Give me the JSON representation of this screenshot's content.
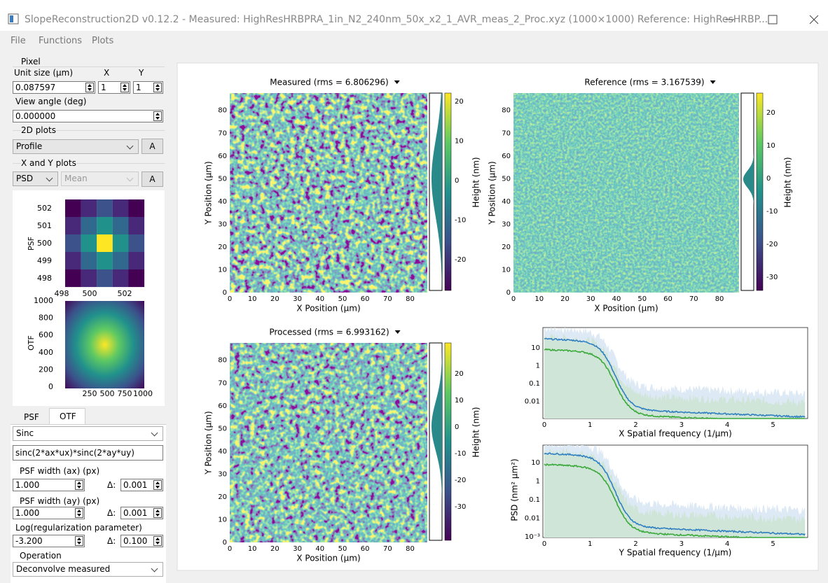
{
  "window": {
    "title": "SlopeReconstruction2D v0.12.2 - Measured: HighResHRBPRA_1in_N2_240nm_50x_x2_1_AVR_meas_2_Proc.xyz (1000×1000)  Reference: HighResHRBP..."
  },
  "menu": [
    "File",
    "Functions",
    "Plots"
  ],
  "panel": {
    "pixel": {
      "label": "Pixel",
      "unit_label": "Unit size (μm)",
      "x_label": "X",
      "y_label": "Y",
      "unit": "0.087597",
      "x": "1",
      "y": "1"
    },
    "view_angle": {
      "label": "View angle (deg)",
      "value": "0.000000"
    },
    "plots_2d": {
      "label": "2D plots",
      "mode": "Profile",
      "button": "A"
    },
    "plots_xy": {
      "label": "X and Y plots",
      "mode": "PSD",
      "stat": "Mean",
      "button": "A"
    },
    "psf_plot": {
      "ylabel": "PSF",
      "xticks": [
        "498",
        "500",
        "502"
      ],
      "yticks": [
        "502",
        "501",
        "500",
        "499",
        "498"
      ]
    },
    "otf_plot": {
      "ylabel": "OTF",
      "xticks": [
        "250",
        "500",
        "750",
        "1000"
      ],
      "yticks": [
        "1000",
        "800",
        "600",
        "400",
        "200",
        "0"
      ]
    },
    "tabs": [
      "PSF",
      "OTF"
    ],
    "function": "Sinc",
    "expression": "sinc(2*ax*ux)*sinc(2*ay*uy)",
    "ax": {
      "label": "PSF width (ax) (px)",
      "value": "1.000",
      "delta_label": "Δ:",
      "delta": "0.001"
    },
    "ay": {
      "label": "PSF width (ay) (px)",
      "value": "1.000",
      "delta_label": "Δ:",
      "delta": "0.001"
    },
    "reg": {
      "label": "Log(regularization parameter)",
      "value": "-3.200",
      "delta_label": "Δ:",
      "delta": "0.100"
    },
    "operation": {
      "label": "Operation",
      "value": "Deconvolve measured"
    }
  },
  "plots": {
    "measured": {
      "title": "Measured (rms = 6.806296)",
      "xlabel": "X Position (μm)",
      "ylabel": "Y Position (μm)",
      "xticks": [
        "0",
        "10",
        "20",
        "30",
        "40",
        "50",
        "60",
        "70",
        "80"
      ],
      "yticks": [
        "0",
        "10",
        "20",
        "30",
        "40",
        "50",
        "60",
        "70",
        "80"
      ],
      "colorbar_label": "Height (nm)",
      "colorbar_ticks": [
        "20",
        "10",
        "0",
        "-10",
        "-20"
      ]
    },
    "reference": {
      "title": "Reference (rms = 3.167539)",
      "xlabel": "X Position (μm)",
      "ylabel": "Y Position (μm)",
      "xticks": [
        "0",
        "10",
        "20",
        "30",
        "40",
        "50",
        "60",
        "70",
        "80"
      ],
      "yticks": [
        "0",
        "10",
        "20",
        "30",
        "40",
        "50",
        "60",
        "70",
        "80"
      ],
      "colorbar_label": "Height (nm)",
      "colorbar_ticks": [
        "20",
        "10",
        "0",
        "-10",
        "-20",
        "-30"
      ]
    },
    "processed": {
      "title": "Processed (rms = 6.993162)",
      "xlabel": "X Position (μm)",
      "ylabel": "Y Position (μm)",
      "xticks": [
        "0",
        "10",
        "20",
        "30",
        "40",
        "50",
        "60",
        "70",
        "80"
      ],
      "yticks": [
        "0",
        "10",
        "20",
        "30",
        "40",
        "50",
        "60",
        "70",
        "80"
      ],
      "colorbar_label": "Height (nm)",
      "colorbar_ticks": [
        "20",
        "10",
        "0",
        "-10",
        "-20",
        "-30"
      ]
    },
    "psd_x": {
      "xlabel": "X Spatial frequency (1/μm)",
      "xticks": [
        "0",
        "1",
        "2",
        "3",
        "4",
        "5"
      ],
      "yticks": [
        "10",
        "1",
        "0.1",
        "0.01"
      ]
    },
    "psd_y": {
      "xlabel": "Y Spatial frequency (1/μm)",
      "xticks": [
        "0",
        "1",
        "2",
        "3",
        "4",
        "5"
      ],
      "yticks": [
        "10",
        "1",
        "0.1",
        "0.01",
        "10⁻³"
      ]
    },
    "psd_ylabel": "PSD (nm² μm²)"
  }
}
